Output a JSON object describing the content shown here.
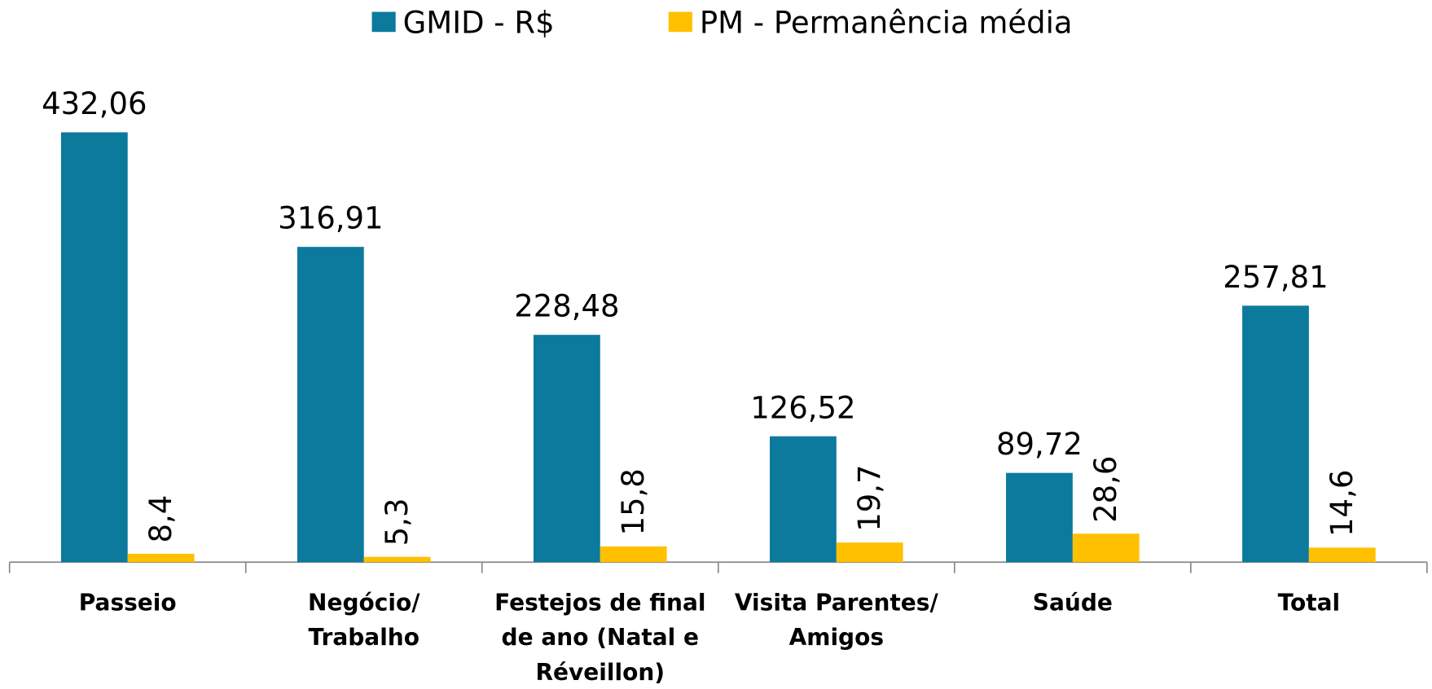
{
  "chart_data": {
    "type": "bar",
    "categories": [
      "Passeio",
      "Negócio/ Trabalho",
      "Festejos de final de ano (Natal e Réveillon)",
      "Visita Parentes/ Amigos",
      "Saúde",
      "Total"
    ],
    "series": [
      {
        "name": "GMID - R$",
        "color": "#0c7a9c",
        "values": [
          432.06,
          316.91,
          228.48,
          126.52,
          89.72,
          257.81
        ],
        "value_labels": [
          "432,06",
          "316,91",
          "228,48",
          "126,52",
          "89,72",
          "257,81"
        ]
      },
      {
        "name": "PM - Permanência média",
        "color": "#ffc000",
        "values": [
          8.4,
          5.3,
          15.8,
          19.7,
          28.6,
          14.6
        ],
        "value_labels": [
          "8,4",
          "5,3",
          "15,8",
          "19,7",
          "28,6",
          "14,6"
        ]
      }
    ],
    "legend": "top"
  }
}
